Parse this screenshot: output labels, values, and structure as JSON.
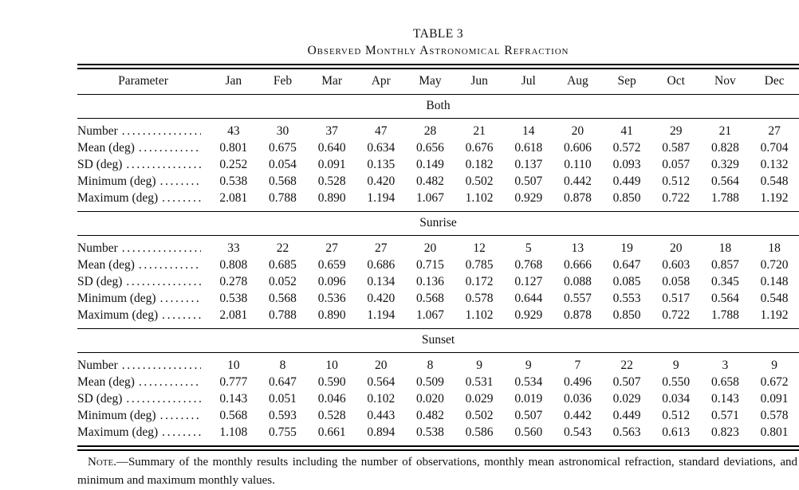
{
  "page": {
    "background": "#ffffff",
    "text_color": "#111111"
  },
  "table": {
    "title": "TABLE 3",
    "subtitle": "Observed Monthly Astronomical Refraction",
    "leader_dots": "................................................",
    "columns": [
      "Parameter",
      "Jan",
      "Feb",
      "Mar",
      "Apr",
      "May",
      "Jun",
      "Jul",
      "Aug",
      "Sep",
      "Oct",
      "Nov",
      "Dec"
    ],
    "sections": [
      {
        "name": "Both",
        "rows": [
          {
            "label": "Number",
            "values": [
              "43",
              "30",
              "37",
              "47",
              "28",
              "21",
              "14",
              "20",
              "41",
              "29",
              "21",
              "27"
            ]
          },
          {
            "label": "Mean (deg)",
            "values": [
              "0.801",
              "0.675",
              "0.640",
              "0.634",
              "0.656",
              "0.676",
              "0.618",
              "0.606",
              "0.572",
              "0.587",
              "0.828",
              "0.704"
            ]
          },
          {
            "label": "SD (deg)",
            "values": [
              "0.252",
              "0.054",
              "0.091",
              "0.135",
              "0.149",
              "0.182",
              "0.137",
              "0.110",
              "0.093",
              "0.057",
              "0.329",
              "0.132"
            ]
          },
          {
            "label": "Minimum (deg)",
            "values": [
              "0.538",
              "0.568",
              "0.528",
              "0.420",
              "0.482",
              "0.502",
              "0.507",
              "0.442",
              "0.449",
              "0.512",
              "0.564",
              "0.548"
            ]
          },
          {
            "label": "Maximum (deg)",
            "values": [
              "2.081",
              "0.788",
              "0.890",
              "1.194",
              "1.067",
              "1.102",
              "0.929",
              "0.878",
              "0.850",
              "0.722",
              "1.788",
              "1.192"
            ]
          }
        ]
      },
      {
        "name": "Sunrise",
        "rows": [
          {
            "label": "Number",
            "values": [
              "33",
              "22",
              "27",
              "27",
              "20",
              "12",
              "5",
              "13",
              "19",
              "20",
              "18",
              "18"
            ]
          },
          {
            "label": "Mean (deg)",
            "values": [
              "0.808",
              "0.685",
              "0.659",
              "0.686",
              "0.715",
              "0.785",
              "0.768",
              "0.666",
              "0.647",
              "0.603",
              "0.857",
              "0.720"
            ]
          },
          {
            "label": "SD (deg)",
            "values": [
              "0.278",
              "0.052",
              "0.096",
              "0.134",
              "0.136",
              "0.172",
              "0.127",
              "0.088",
              "0.085",
              "0.058",
              "0.345",
              "0.148"
            ]
          },
          {
            "label": "Minimum (deg)",
            "values": [
              "0.538",
              "0.568",
              "0.536",
              "0.420",
              "0.568",
              "0.578",
              "0.644",
              "0.557",
              "0.553",
              "0.517",
              "0.564",
              "0.548"
            ]
          },
          {
            "label": "Maximum (deg)",
            "values": [
              "2.081",
              "0.788",
              "0.890",
              "1.194",
              "1.067",
              "1.102",
              "0.929",
              "0.878",
              "0.850",
              "0.722",
              "1.788",
              "1.192"
            ]
          }
        ]
      },
      {
        "name": "Sunset",
        "rows": [
          {
            "label": "Number",
            "values": [
              "10",
              "8",
              "10",
              "20",
              "8",
              "9",
              "9",
              "7",
              "22",
              "9",
              "3",
              "9"
            ]
          },
          {
            "label": "Mean (deg)",
            "values": [
              "0.777",
              "0.647",
              "0.590",
              "0.564",
              "0.509",
              "0.531",
              "0.534",
              "0.496",
              "0.507",
              "0.550",
              "0.658",
              "0.672"
            ]
          },
          {
            "label": "SD (deg)",
            "values": [
              "0.143",
              "0.051",
              "0.046",
              "0.102",
              "0.020",
              "0.029",
              "0.019",
              "0.036",
              "0.029",
              "0.034",
              "0.143",
              "0.091"
            ]
          },
          {
            "label": "Minimum (deg)",
            "values": [
              "0.568",
              "0.593",
              "0.528",
              "0.443",
              "0.482",
              "0.502",
              "0.507",
              "0.442",
              "0.449",
              "0.512",
              "0.571",
              "0.578"
            ]
          },
          {
            "label": "Maximum (deg)",
            "values": [
              "1.108",
              "0.755",
              "0.661",
              "0.894",
              "0.538",
              "0.586",
              "0.560",
              "0.543",
              "0.563",
              "0.613",
              "0.823",
              "0.801"
            ]
          }
        ]
      }
    ],
    "note": {
      "label": "Note.",
      "text": "—Summary of the monthly results including the number of observations, monthly mean astronomical refraction, standard deviations, and minimum and maximum monthly values."
    }
  }
}
